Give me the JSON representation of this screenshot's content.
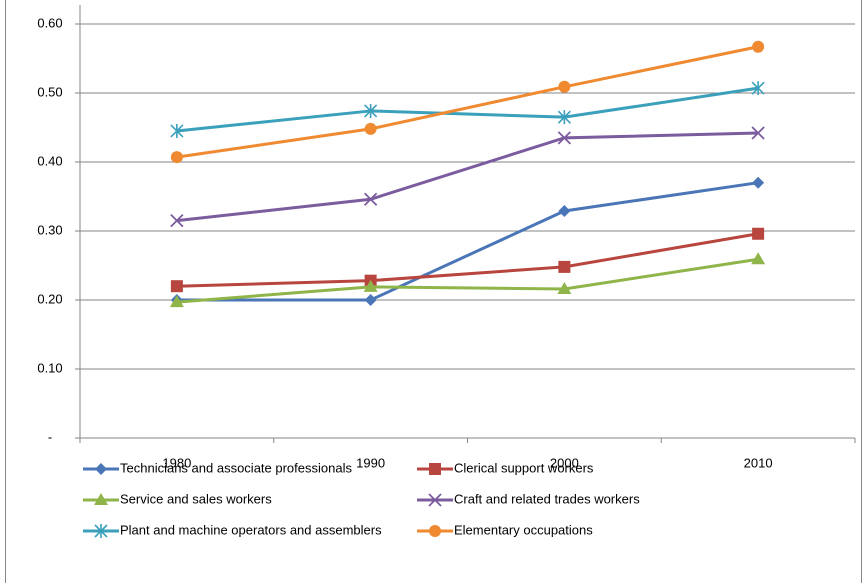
{
  "chart_data": {
    "type": "line",
    "categories": [
      "1980",
      "1990",
      "2000",
      "2010"
    ],
    "series": [
      {
        "name": "Technicians and associate professionals",
        "color": "#4a76b8",
        "marker": "diamond",
        "values": [
          0.2,
          0.2,
          0.329,
          0.37
        ]
      },
      {
        "name": "Clerical support workers",
        "color": "#b8463f",
        "marker": "square",
        "values": [
          0.22,
          0.228,
          0.248,
          0.296
        ]
      },
      {
        "name": "Service and sales workers",
        "color": "#8fb54a",
        "marker": "triangle",
        "values": [
          0.197,
          0.219,
          0.216,
          0.259
        ]
      },
      {
        "name": "Craft and related trades workers",
        "color": "#7b5c9e",
        "marker": "x",
        "values": [
          0.315,
          0.346,
          0.435,
          0.442
        ]
      },
      {
        "name": "Plant and machine operators and assemblers",
        "color": "#3aa0bb",
        "marker": "asterisk",
        "values": [
          0.445,
          0.474,
          0.465,
          0.507
        ]
      },
      {
        "name": "Elementary occupations",
        "color": "#ef8a31",
        "marker": "circle",
        "values": [
          0.407,
          0.448,
          0.509,
          0.567
        ]
      }
    ],
    "ylim": [
      0,
      0.6
    ],
    "yticks": [
      {
        "value": 0,
        "label": "-"
      },
      {
        "value": 0.1,
        "label": "0.10"
      },
      {
        "value": 0.2,
        "label": "0.20"
      },
      {
        "value": 0.3,
        "label": "0.30"
      },
      {
        "value": 0.4,
        "label": "0.40"
      },
      {
        "value": 0.5,
        "label": "0.50"
      },
      {
        "value": 0.6,
        "label": "0.60"
      }
    ],
    "grid": true,
    "legend": "bottom"
  }
}
